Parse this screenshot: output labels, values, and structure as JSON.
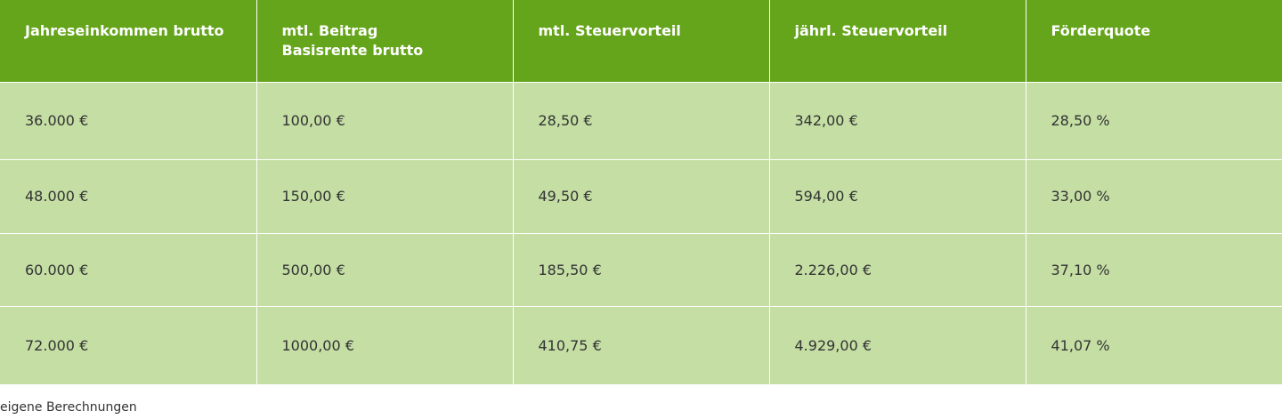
{
  "table": {
    "header": [
      "Jahreseinkommen brutto",
      "mtl. Beitrag\nBasisrente brutto",
      "mtl. Steuervorteil",
      "jährl. Steuervorteil",
      "Förderquote"
    ],
    "rows": [
      [
        "36.000 €",
        "100,00 €",
        "28,50 €",
        "342,00 €",
        "28,50 %"
      ],
      [
        "48.000 €",
        "150,00 €",
        "49,50 €",
        "594,00 €",
        "33,00 %"
      ],
      [
        "60.000 €",
        "500,00 €",
        "185,50 €",
        "2.226,00 €",
        "37,10 %"
      ],
      [
        "72.000 €",
        "1000,00 €",
        "410,75 €",
        "4.929,00 €",
        "41,07 %"
      ]
    ]
  },
  "footnote": "eigene Berechnungen"
}
